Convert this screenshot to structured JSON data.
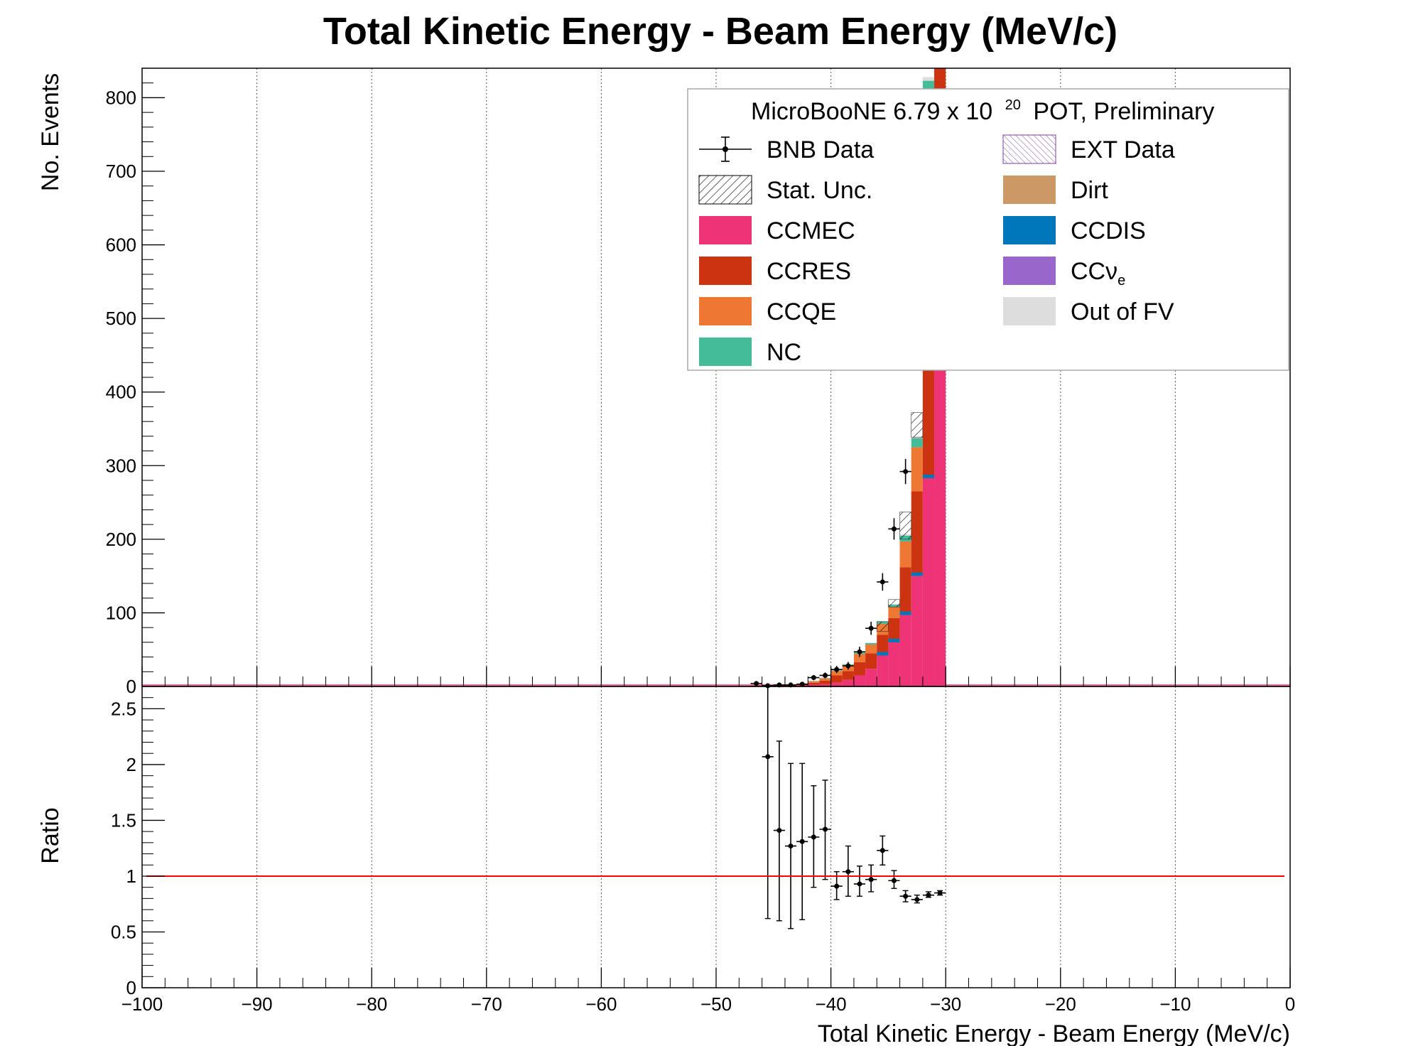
{
  "chart_data": {
    "type": "bar",
    "title": "Total Kinetic Energy - Beam Energy (MeV/c)",
    "xlabel": "Total Kinetic Energy - Beam Energy (MeV/c)",
    "ylabel_top": "No. Events",
    "ylabel_bottom": "Ratio",
    "xlim": [
      -100,
      0
    ],
    "ylim_top": [
      0,
      840
    ],
    "ylim_bottom": [
      0,
      2.7
    ],
    "xticks": [
      "−100",
      "−90",
      "−80",
      "−70",
      "−60",
      "−50",
      "−40",
      "−30",
      "−20",
      "−10",
      "0"
    ],
    "yticks_top": [
      "0",
      "100",
      "200",
      "300",
      "400",
      "500",
      "600",
      "700",
      "800"
    ],
    "yticks_bottom": [
      "0",
      "0.5",
      "1",
      "1.5",
      "2",
      "2.5"
    ],
    "grid": "vertical dotted",
    "legend": {
      "header": "MicroBooNE 6.79 x 10",
      "header_exp": "20",
      "header_tail": "POT, Preliminary",
      "placement": "top-right",
      "entries": [
        {
          "key": "bnb",
          "label": "BNB Data"
        },
        {
          "key": "ext",
          "label": "EXT Data"
        },
        {
          "key": "stat",
          "label": "Stat. Unc."
        },
        {
          "key": "dirt",
          "label": "Dirt"
        },
        {
          "key": "ccmec",
          "label": "CCMEC"
        },
        {
          "key": "ccdis",
          "label": "CCDIS"
        },
        {
          "key": "ccres",
          "label": "CCRES"
        },
        {
          "key": "ccnue",
          "label": "CCν",
          "sub": "e"
        },
        {
          "key": "ccqe",
          "label": "CCQE"
        },
        {
          "key": "oofv",
          "label": "Out of FV"
        },
        {
          "key": "nc",
          "label": "NC"
        }
      ]
    },
    "colors": {
      "ccmec": "#ee3377",
      "ccres": "#cc3311",
      "ccqe": "#ee7733",
      "nc": "#44bb99",
      "ccdis": "#0077bb",
      "ccnue": "#9966cc",
      "dirt": "#cc9966",
      "oofv": "#dddddd",
      "ratio_line": "#ff0000"
    },
    "bin_width": 1,
    "stack_bins": [
      {
        "lo": -47,
        "ccmec": 0,
        "ccres": 0.5,
        "ccqe": 0.5,
        "nc": 0,
        "oofv": 0.5
      },
      {
        "lo": -46,
        "ccmec": 0,
        "ccres": 0.5,
        "ccqe": 0.5,
        "nc": 0,
        "oofv": 0.5
      },
      {
        "lo": -45,
        "ccmec": 0.5,
        "ccres": 1,
        "ccqe": 0.5,
        "nc": 0,
        "oofv": 0.5
      },
      {
        "lo": -44,
        "ccmec": 0.5,
        "ccres": 1.5,
        "ccqe": 0.5,
        "nc": 0,
        "oofv": 0.5
      },
      {
        "lo": -43,
        "ccmec": 1,
        "ccres": 2,
        "ccqe": 1,
        "nc": 0,
        "oofv": 0.5
      },
      {
        "lo": -42,
        "ccmec": 2,
        "ccres": 3,
        "ccqe": 2,
        "nc": 0.5,
        "oofv": 0.5
      },
      {
        "lo": -41,
        "ccmec": 3,
        "ccres": 5,
        "ccqe": 3,
        "nc": 0.5,
        "oofv": 0.5
      },
      {
        "lo": -40,
        "ccmec": 5,
        "ccres": 10,
        "ccqe": 6,
        "nc": 1,
        "oofv": 0.5
      },
      {
        "lo": -39,
        "ccmec": 9,
        "ccres": 12,
        "ccqe": 8,
        "nc": 1,
        "oofv": 0.5
      },
      {
        "lo": -38,
        "ccmec": 15,
        "ccres": 18,
        "ccqe": 11,
        "nc": 2,
        "oofv": 0.5
      },
      {
        "lo": -37,
        "ccmec": 24,
        "ccres": 21,
        "ccqe": 12,
        "nc": 2,
        "oofv": 0.5
      },
      {
        "lo": -36,
        "ccmec": 42,
        "ccres": 28,
        "ccqe": 15,
        "nc": 3,
        "oofv": 1
      },
      {
        "lo": -35,
        "ccmec": 60,
        "ccres": 33,
        "ccqe": 15,
        "nc": 3,
        "oofv": 1
      },
      {
        "lo": -34,
        "ccmec": 97,
        "ccres": 65,
        "ccqe": 35,
        "nc": 8,
        "oofv": 2
      },
      {
        "lo": -33,
        "ccmec": 150,
        "ccres": 115,
        "ccqe": 60,
        "nc": 12,
        "oofv": 3
      },
      {
        "lo": -32,
        "ccmec": 283,
        "ccres": 270,
        "ccqe": 255,
        "nc": 15,
        "oofv": 5
      },
      {
        "lo": -31,
        "ccmec": 440,
        "ccres": 480,
        "ccqe": 380,
        "nc": 20,
        "oofv": 5
      }
    ],
    "ccdis_tops": [
      {
        "lo": -36,
        "v": 2
      },
      {
        "lo": -35,
        "v": 3
      },
      {
        "lo": -34,
        "v": 4
      },
      {
        "lo": -33,
        "v": 6
      },
      {
        "lo": -32,
        "v": 8
      }
    ],
    "bnb_data": [
      {
        "x": -46.5,
        "y": 4,
        "err": 2
      },
      {
        "x": -45.5,
        "y": 1,
        "err": 1
      },
      {
        "x": -44.5,
        "y": 2,
        "err": 1.4
      },
      {
        "x": -43.5,
        "y": 2,
        "err": 1.4
      },
      {
        "x": -42.5,
        "y": 3,
        "err": 1.7
      },
      {
        "x": -41.5,
        "y": 12,
        "err": 3.5
      },
      {
        "x": -40.5,
        "y": 15,
        "err": 3.9
      },
      {
        "x": -39.5,
        "y": 23,
        "err": 4.8
      },
      {
        "x": -38.5,
        "y": 28,
        "err": 5.3
      },
      {
        "x": -37.5,
        "y": 47,
        "err": 6.9
      },
      {
        "x": -36.5,
        "y": 79,
        "err": 8.9
      },
      {
        "x": -35.5,
        "y": 142,
        "err": 11.9
      },
      {
        "x": -34.5,
        "y": 214,
        "err": 14.6
      },
      {
        "x": -33.5,
        "y": 292,
        "err": 17.1
      }
    ],
    "stat_unc_boxes": [
      {
        "lo": -36,
        "lo_y": 75,
        "hi_y": 88
      },
      {
        "lo": -35,
        "lo_y": 108,
        "hi_y": 118
      },
      {
        "lo": -34,
        "lo_y": 200,
        "hi_y": 237
      },
      {
        "lo": -33,
        "lo_y": 338,
        "hi_y": 372
      }
    ],
    "ratio": [
      {
        "x": -45.5,
        "y": 2.07,
        "lo": 0.62,
        "hi": 2.7
      },
      {
        "x": -44.5,
        "y": 1.41,
        "lo": 0.6,
        "hi": 2.21
      },
      {
        "x": -43.5,
        "y": 1.27,
        "lo": 0.53,
        "hi": 2.01
      },
      {
        "x": -42.5,
        "y": 1.31,
        "lo": 0.61,
        "hi": 2.01
      },
      {
        "x": -41.5,
        "y": 1.35,
        "lo": 0.9,
        "hi": 1.81
      },
      {
        "x": -40.5,
        "y": 1.42,
        "lo": 0.97,
        "hi": 1.86
      },
      {
        "x": -39.5,
        "y": 0.91,
        "lo": 0.79,
        "hi": 1.04
      },
      {
        "x": -38.5,
        "y": 1.04,
        "lo": 0.82,
        "hi": 1.27
      },
      {
        "x": -37.5,
        "y": 0.93,
        "lo": 0.82,
        "hi": 1.09
      },
      {
        "x": -36.5,
        "y": 0.97,
        "lo": 0.86,
        "hi": 1.1
      },
      {
        "x": -35.5,
        "y": 1.23,
        "lo": 1.1,
        "hi": 1.36
      },
      {
        "x": -34.5,
        "y": 0.96,
        "lo": 0.89,
        "hi": 1.05
      },
      {
        "x": -33.5,
        "y": 0.82,
        "lo": 0.77,
        "hi": 0.87
      },
      {
        "x": -32.5,
        "y": 0.79,
        "lo": 0.76,
        "hi": 0.83
      },
      {
        "x": -31.5,
        "y": 0.83,
        "lo": 0.81,
        "hi": 0.86
      },
      {
        "x": -30.5,
        "y": 0.85,
        "lo": 0.83,
        "hi": 0.87
      }
    ],
    "ratio_reference": 1
  }
}
